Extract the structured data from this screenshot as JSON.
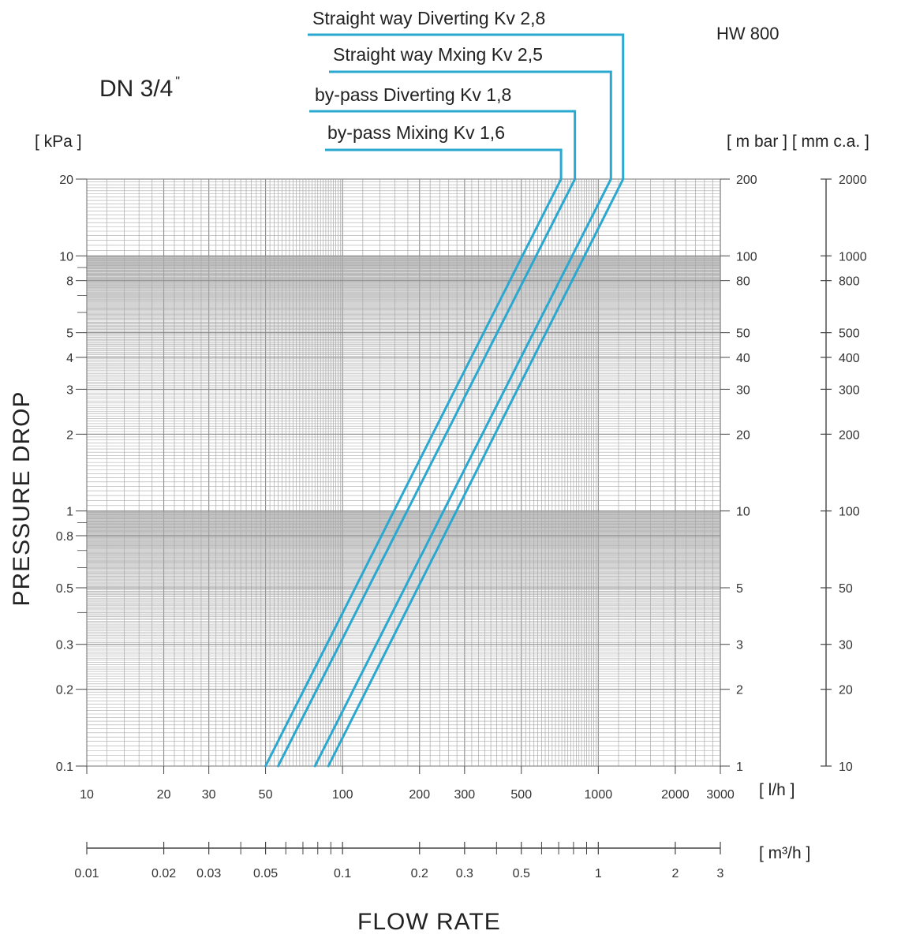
{
  "header": {
    "title": "DN 3/4",
    "title_mark": "\"",
    "model": "HW 800",
    "unit_kpa": "[ kPa ]",
    "unit_mbar_mmca": "[ m bar ] [ mm c.a. ]",
    "unit_lh": "[ l/h ]",
    "unit_m3h": "[ m³/h ]"
  },
  "axes": {
    "ylabel": "PRESSURE DROP",
    "xlabel": "FLOW RATE"
  },
  "colors": {
    "curve": "#2aa8d0",
    "grid": "#a9a9a9",
    "grid_major": "#8a8a8a",
    "axis": "#444444"
  },
  "chart_data": {
    "type": "line",
    "x_unit": "l/h",
    "y_unit": "kPa",
    "x_scale": "log",
    "y_scale": "log",
    "xlim": [
      10,
      3000
    ],
    "ylim": [
      0.1,
      20
    ],
    "grid": true,
    "x_ticks": [
      {
        "v": 10,
        "label": "10"
      },
      {
        "v": 20,
        "label": "20"
      },
      {
        "v": 30,
        "label": "30"
      },
      {
        "v": 50,
        "label": "50"
      },
      {
        "v": 100,
        "label": "100"
      },
      {
        "v": 200,
        "label": "200"
      },
      {
        "v": 300,
        "label": "300"
      },
      {
        "v": 500,
        "label": "500"
      },
      {
        "v": 1000,
        "label": "1000"
      },
      {
        "v": 2000,
        "label": "2000"
      },
      {
        "v": 3000,
        "label": "3000"
      }
    ],
    "x2_ticks": [
      {
        "v": 0.01,
        "label": "0.01"
      },
      {
        "v": 0.02,
        "label": "0.02"
      },
      {
        "v": 0.03,
        "label": "0.03"
      },
      {
        "v": 0.05,
        "label": "0.05"
      },
      {
        "v": 0.1,
        "label": "0.1"
      },
      {
        "v": 0.2,
        "label": "0.2"
      },
      {
        "v": 0.3,
        "label": "0.3"
      },
      {
        "v": 0.5,
        "label": "0.5"
      },
      {
        "v": 1,
        "label": "1"
      },
      {
        "v": 2,
        "label": "2"
      },
      {
        "v": 3,
        "label": "3"
      }
    ],
    "x2_minor": [
      0.04,
      0.06,
      0.07,
      0.08,
      0.09,
      0.4,
      0.6,
      0.7,
      0.8,
      0.9
    ],
    "y_ticks": [
      {
        "v": 0.1,
        "label": "0.1"
      },
      {
        "v": 0.2,
        "label": "0.2"
      },
      {
        "v": 0.3,
        "label": "0.3"
      },
      {
        "v": 0.5,
        "label": "0.5"
      },
      {
        "v": 0.8,
        "label": "0.8"
      },
      {
        "v": 1,
        "label": "1"
      },
      {
        "v": 2,
        "label": "2"
      },
      {
        "v": 3,
        "label": "3"
      },
      {
        "v": 4,
        "label": "4"
      },
      {
        "v": 5,
        "label": "5"
      },
      {
        "v": 8,
        "label": "8"
      },
      {
        "v": 10,
        "label": "10"
      },
      {
        "v": 20,
        "label": "20"
      }
    ],
    "y_mbar_ticks": [
      {
        "v": 0.1,
        "label": "1"
      },
      {
        "v": 0.2,
        "label": "2"
      },
      {
        "v": 0.3,
        "label": "3"
      },
      {
        "v": 0.5,
        "label": "5"
      },
      {
        "v": 1,
        "label": "10"
      },
      {
        "v": 2,
        "label": "20"
      },
      {
        "v": 3,
        "label": "30"
      },
      {
        "v": 4,
        "label": "40"
      },
      {
        "v": 5,
        "label": "50"
      },
      {
        "v": 8,
        "label": "80"
      },
      {
        "v": 10,
        "label": "100"
      },
      {
        "v": 20,
        "label": "200"
      }
    ],
    "y_mmca_ticks": [
      {
        "v": 0.1,
        "label": "10"
      },
      {
        "v": 0.2,
        "label": "20"
      },
      {
        "v": 0.3,
        "label": "30"
      },
      {
        "v": 0.5,
        "label": "50"
      },
      {
        "v": 1,
        "label": "100"
      },
      {
        "v": 2,
        "label": "200"
      },
      {
        "v": 3,
        "label": "300"
      },
      {
        "v": 4,
        "label": "400"
      },
      {
        "v": 5,
        "label": "500"
      },
      {
        "v": 8,
        "label": "800"
      },
      {
        "v": 10,
        "label": "1000"
      },
      {
        "v": 20,
        "label": "2000"
      }
    ],
    "series": [
      {
        "name": "Straight way Diverting Kv 2,8",
        "kv": 2.8,
        "x": [
          88,
          1250
        ],
        "y": [
          0.1,
          20
        ]
      },
      {
        "name": "Straight way Mxing Kv 2,5",
        "kv": 2.5,
        "x": [
          78,
          1120
        ],
        "y": [
          0.1,
          20
        ]
      },
      {
        "name": "by-pass Diverting Kv 1,8",
        "kv": 1.8,
        "x": [
          56,
          810
        ],
        "y": [
          0.1,
          20
        ]
      },
      {
        "name": "by-pass Mixing Kv 1,6",
        "kv": 1.6,
        "x": [
          50,
          715
        ],
        "y": [
          0.1,
          20
        ]
      }
    ]
  }
}
